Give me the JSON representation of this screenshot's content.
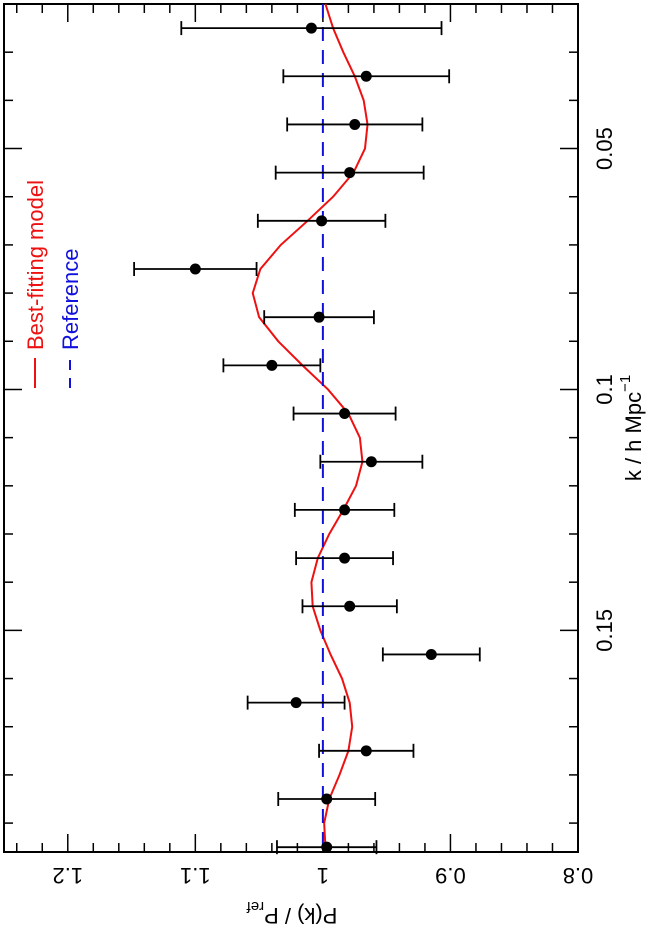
{
  "chart_data": {
    "type": "scatter",
    "orientation": "rotated-90-clockwise",
    "xlabel": "k / h Mpc",
    "xlabel_superscript": "−1",
    "ylabel_main": "P(k) / P",
    "ylabel_subscript": "ref",
    "xlim": [
      0.02,
      0.196
    ],
    "ylim": [
      0.8,
      1.25
    ],
    "x_ticks": [
      0.05,
      0.1,
      0.15
    ],
    "x_tick_labels": [
      "0.05",
      "0.1",
      "0.15"
    ],
    "y_ticks": [
      0.8,
      0.9,
      1.0,
      1.1,
      1.2
    ],
    "y_tick_labels": [
      "0.8",
      "0.9",
      "1",
      "1.1",
      "1.2"
    ],
    "legend_position": "top-left",
    "colors": {
      "model": "#ee1111",
      "reference": "#1111dd",
      "data": "#000000"
    },
    "series": [
      {
        "name": "Best-fitting model",
        "style": "solid-line",
        "x": [
          0.02,
          0.025,
          0.03,
          0.035,
          0.04,
          0.045,
          0.05,
          0.055,
          0.06,
          0.065,
          0.07,
          0.075,
          0.08,
          0.085,
          0.09,
          0.095,
          0.1,
          0.105,
          0.11,
          0.115,
          0.12,
          0.125,
          0.13,
          0.135,
          0.14,
          0.145,
          0.15,
          0.155,
          0.16,
          0.165,
          0.17,
          0.175,
          0.18,
          0.185,
          0.19,
          0.195
        ],
        "y": [
          0.998,
          0.992,
          0.984,
          0.975,
          0.968,
          0.965,
          0.967,
          0.976,
          0.992,
          1.012,
          1.033,
          1.049,
          1.055,
          1.05,
          1.035,
          1.016,
          0.996,
          0.98,
          0.971,
          0.969,
          0.974,
          0.984,
          0.995,
          1.004,
          1.009,
          1.008,
          1.002,
          0.994,
          0.985,
          0.979,
          0.977,
          0.98,
          0.987,
          0.995,
          0.999,
          0.998
        ]
      },
      {
        "name": "Reference",
        "style": "dashed-line",
        "x": [
          0.02,
          0.196
        ],
        "y": [
          1.0,
          1.0
        ]
      }
    ],
    "points": [
      {
        "x": 0.025,
        "y": 1.009,
        "err": 0.102
      },
      {
        "x": 0.035,
        "y": 0.966,
        "err": 0.065
      },
      {
        "x": 0.045,
        "y": 0.975,
        "err": 0.053
      },
      {
        "x": 0.055,
        "y": 0.979,
        "err": 0.058
      },
      {
        "x": 0.065,
        "y": 1.001,
        "err": 0.05
      },
      {
        "x": 0.075,
        "y": 1.1,
        "err": 0.048
      },
      {
        "x": 0.085,
        "y": 1.003,
        "err": 0.043
      },
      {
        "x": 0.095,
        "y": 1.04,
        "err": 0.038
      },
      {
        "x": 0.105,
        "y": 0.983,
        "err": 0.04
      },
      {
        "x": 0.115,
        "y": 0.962,
        "err": 0.04
      },
      {
        "x": 0.125,
        "y": 0.983,
        "err": 0.039
      },
      {
        "x": 0.135,
        "y": 0.983,
        "err": 0.038
      },
      {
        "x": 0.145,
        "y": 0.979,
        "err": 0.037
      },
      {
        "x": 0.155,
        "y": 0.915,
        "err": 0.038
      },
      {
        "x": 0.165,
        "y": 1.021,
        "err": 0.038
      },
      {
        "x": 0.175,
        "y": 0.966,
        "err": 0.037
      },
      {
        "x": 0.185,
        "y": 0.997,
        "err": 0.038
      },
      {
        "x": 0.195,
        "y": 0.997,
        "err": 0.039
      }
    ],
    "legend": [
      {
        "label": "Best-fitting model",
        "style": "solid"
      },
      {
        "label": "Reference",
        "style": "dashed"
      }
    ]
  }
}
